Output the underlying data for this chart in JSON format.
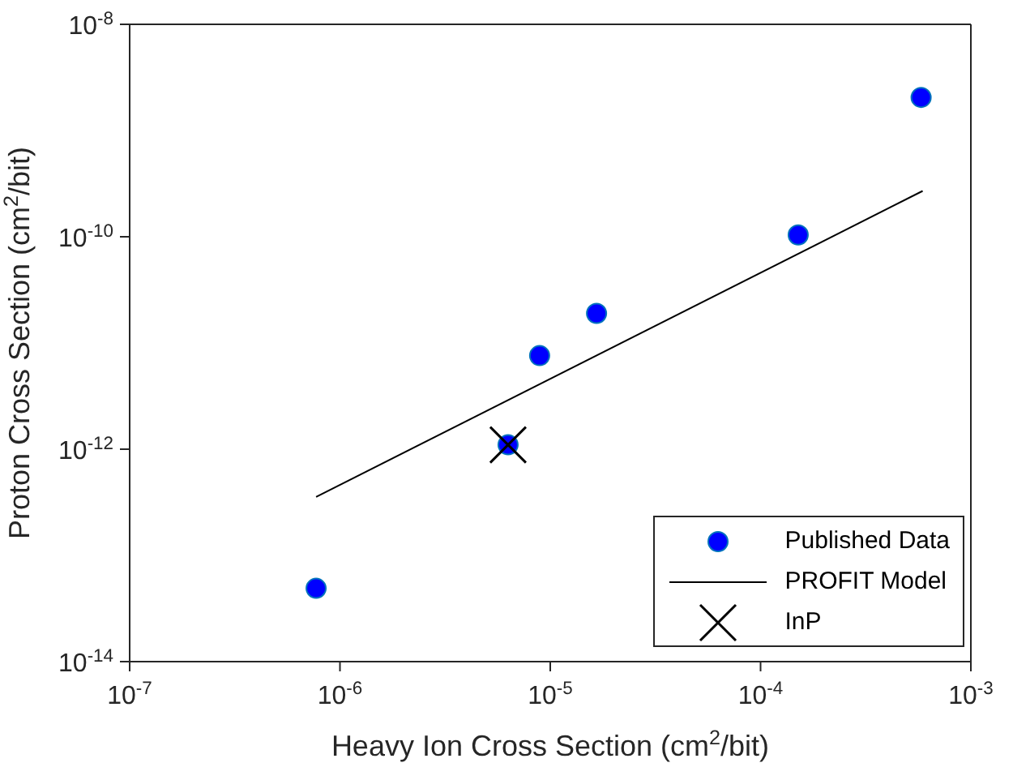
{
  "chart_data": {
    "type": "scatter",
    "xlabel": "Heavy Ion Cross Section (cm$^{2}$/bit)",
    "ylabel": "Proton Cross Section (cm$^{2}$/bit)",
    "log": "xy",
    "xlim": [
      1e-07,
      0.001
    ],
    "ylim": [
      1e-14,
      1e-08
    ],
    "xticks": [
      {
        "value": 1e-07,
        "label": "10$^{-7}$"
      },
      {
        "value": 1e-06,
        "label": "10$^{-6}$"
      },
      {
        "value": 1e-05,
        "label": "10$^{-5}$"
      },
      {
        "value": 0.0001,
        "label": "10$^{-4}$"
      },
      {
        "value": 0.001,
        "label": "10$^{-3}$"
      }
    ],
    "yticks": [
      {
        "value": 1e-14,
        "label": "10$^{-14}$"
      },
      {
        "value": 1e-12,
        "label": "10$^{-12}$"
      },
      {
        "value": 1e-10,
        "label": "10$^{-10}$"
      },
      {
        "value": 1e-08,
        "label": "10$^{-8}$"
      }
    ],
    "legend": "bottom right",
    "series": [
      {
        "name": "Published Data",
        "marker": "circle",
        "color": "#0000ff",
        "x": [
          7.7e-07,
          6.3e-06,
          8.9e-06,
          1.66e-05,
          0.000151,
          0.00058
        ],
        "values": [
          4.9e-14,
          1.1e-12,
          7.6e-12,
          1.9e-11,
          1.04e-10,
          2.05e-09
        ]
      },
      {
        "name": "PROFIT Model",
        "type": "line",
        "marker": "none",
        "color": "#000000",
        "x": [
          7.7e-07,
          0.00059
        ],
        "values": [
          3.55e-13,
          2.7e-10
        ]
      },
      {
        "name": "InP",
        "marker": "cross",
        "color": "#000000",
        "x": [
          6.3e-06
        ],
        "values": [
          1.1e-12
        ]
      }
    ]
  }
}
